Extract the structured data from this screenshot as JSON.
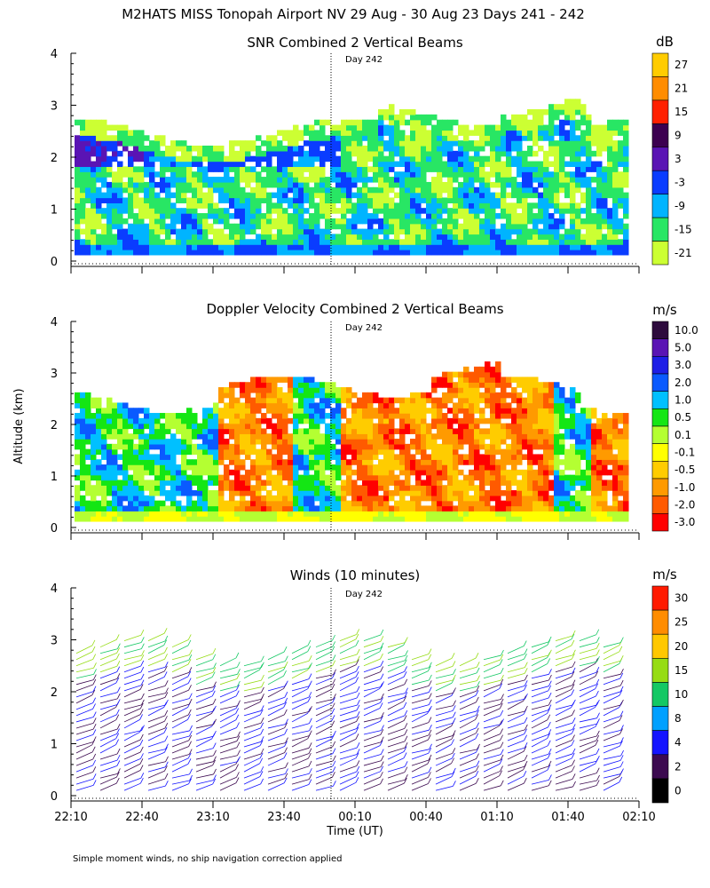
{
  "figure": {
    "title": "M2HATS MISS Tonopah Airport NV  29 Aug - 30 Aug 23 Days 241 - 242",
    "y_axis_label": "Altitude (km)",
    "x_axis_label": "Time (UT)",
    "footnote": "Simple moment winds, no ship navigation correction applied",
    "day_marker_label": "Day 242"
  },
  "chart_data": [
    {
      "type": "heatmap",
      "title": "SNR Combined 2 Vertical Beams",
      "xlabel": "",
      "ylabel": "Altitude (km)",
      "ylim": [
        0,
        4
      ],
      "y_ticks": [
        "0",
        "1",
        "2",
        "3",
        "4"
      ],
      "colorbar": {
        "unit": "dB",
        "labels": [
          "27",
          "21",
          "15",
          "9",
          "3",
          "-3",
          "-9",
          "-15",
          "-21"
        ],
        "colors": [
          "#ffcc00",
          "#ff8c00",
          "#ff2000",
          "#3c0050",
          "#5a14b4",
          "#0a3cff",
          "#00b4ff",
          "#28e664",
          "#ccff33"
        ]
      }
    },
    {
      "type": "heatmap",
      "title": "Doppler Velocity Combined 2 Vertical Beams",
      "xlabel": "",
      "ylabel": "Altitude (km)",
      "ylim": [
        0,
        4
      ],
      "y_ticks": [
        "0",
        "1",
        "2",
        "3",
        "4"
      ],
      "colorbar": {
        "unit": "m/s",
        "labels": [
          "10.0",
          "5.0",
          "3.0",
          "2.0",
          "1.0",
          "0.5",
          "0.1",
          "-0.1",
          "-0.5",
          "-1.0",
          "-2.0",
          "-3.0"
        ],
        "colors": [
          "#2d0a3c",
          "#5a14b4",
          "#1e1ee6",
          "#0a5aff",
          "#00c0ff",
          "#14e614",
          "#b4ff32",
          "#ffff00",
          "#ffcc00",
          "#ff9a00",
          "#ff5a00",
          "#ff0000"
        ]
      }
    },
    {
      "type": "scatter",
      "title": "Winds (10 minutes)",
      "xlabel": "Time (UT)",
      "ylabel": "Altitude (km)",
      "ylim": [
        0,
        4
      ],
      "y_ticks": [
        "0",
        "1",
        "2",
        "3",
        "4"
      ],
      "x_ticks": [
        "22:10",
        "22:40",
        "23:10",
        "23:40",
        "00:10",
        "00:40",
        "01:10",
        "01:40",
        "02:10"
      ],
      "colorbar": {
        "unit": "m/s",
        "labels": [
          "30",
          "25",
          "20",
          "15",
          "10",
          "8",
          "4",
          "2",
          "0"
        ],
        "colors": [
          "#ff1a00",
          "#ff8c00",
          "#ffc800",
          "#96dc14",
          "#14c864",
          "#00a0ff",
          "#1414ff",
          "#3c0a50",
          "#000000"
        ]
      }
    }
  ]
}
